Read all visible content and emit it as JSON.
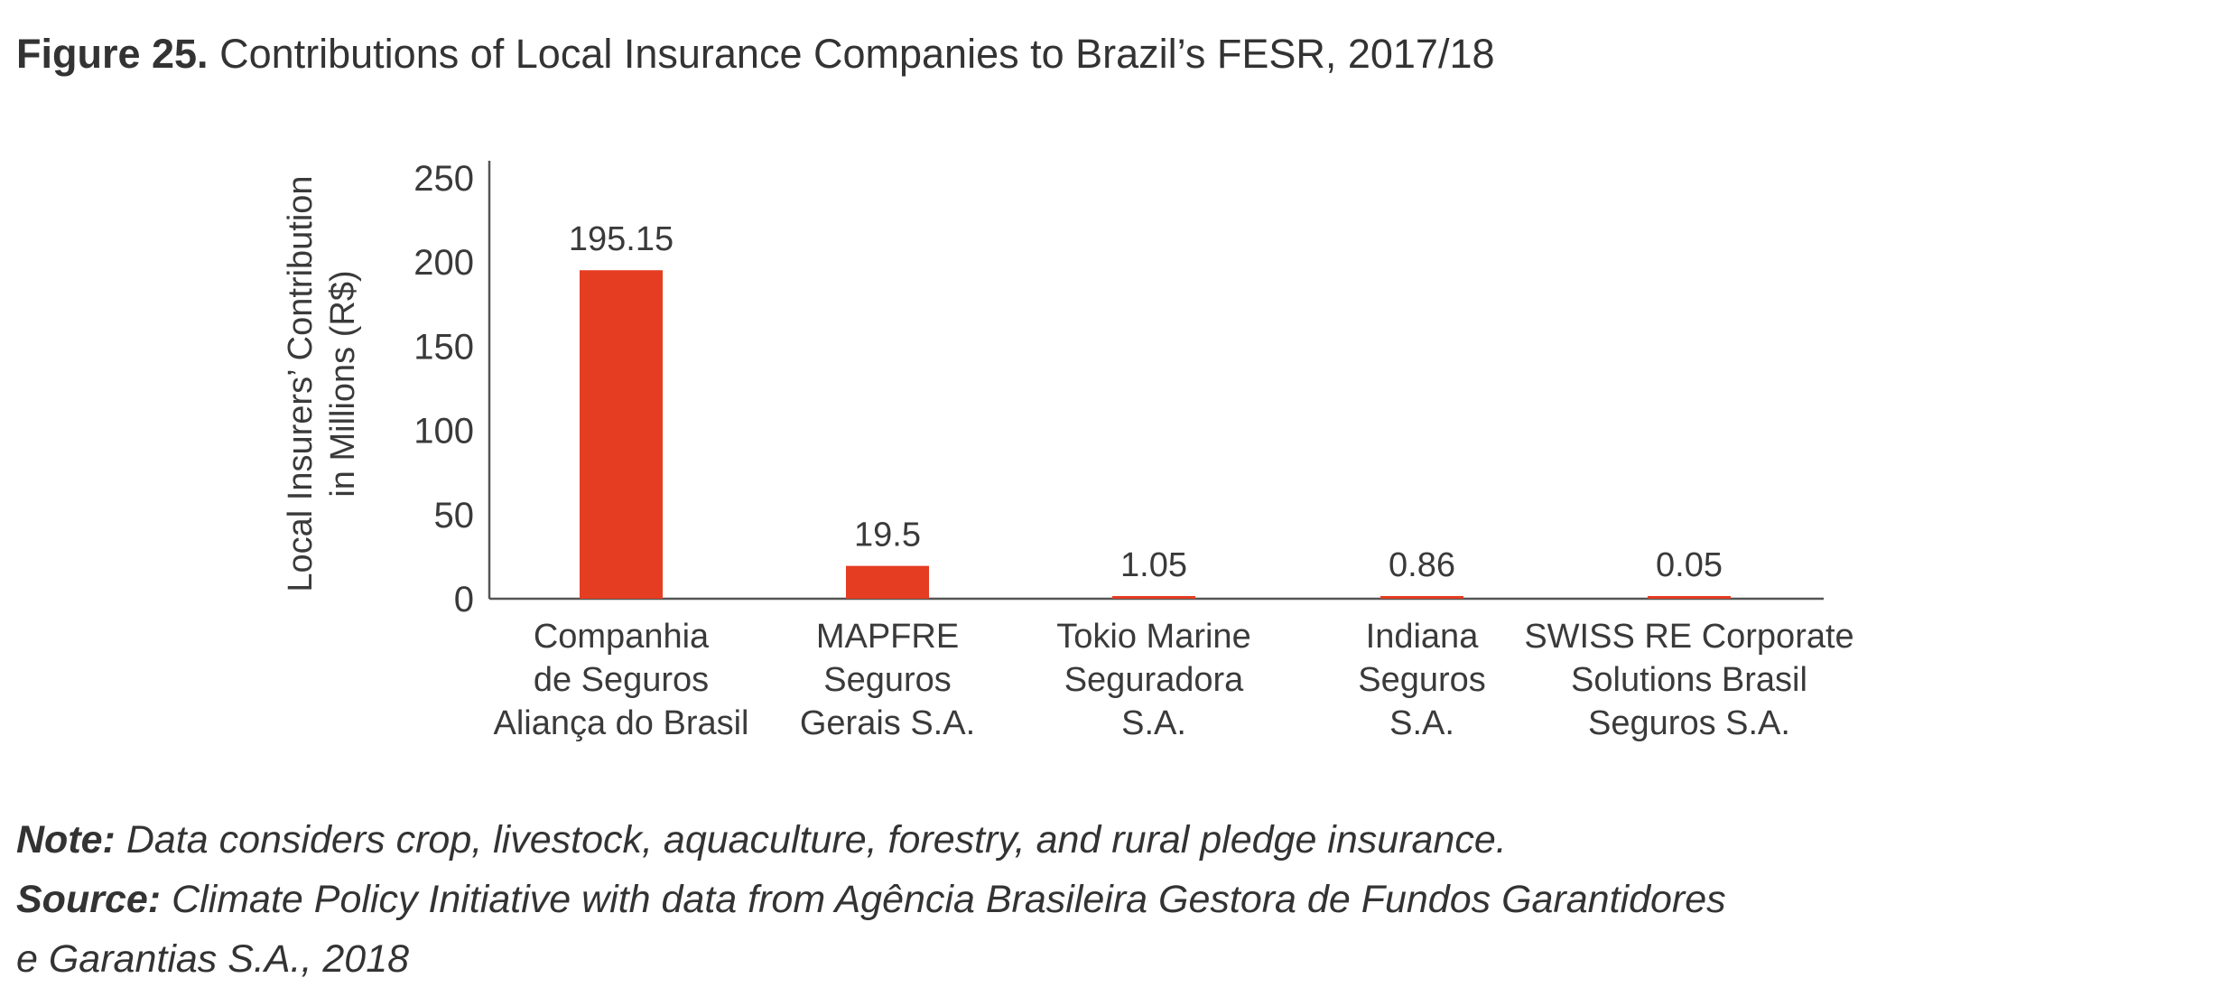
{
  "figure": {
    "number": "Figure 25.",
    "title": "Contributions of Local Insurance Companies to Brazil’s FESR, 2017/18"
  },
  "chart_data": {
    "type": "bar",
    "categories": [
      [
        "Companhia",
        "de Seguros",
        "Aliança do Brasil"
      ],
      [
        "MAPFRE",
        "Seguros",
        "Gerais S.A."
      ],
      [
        "Tokio Marine",
        "Seguradora",
        "S.A."
      ],
      [
        "Indiana",
        "Seguros",
        "S.A."
      ],
      [
        "SWISS RE Corporate",
        "Solutions Brasil",
        "Seguros S.A."
      ]
    ],
    "values": [
      195.15,
      19.5,
      1.05,
      0.86,
      0.05
    ],
    "data_labels": [
      "195.15",
      "19.5",
      "1.05",
      "0.86",
      "0.05"
    ],
    "ylabel": [
      "Local Insurers’ Contribution",
      "in Millions (R$)"
    ],
    "xlabel": "",
    "ylim": [
      0,
      250
    ],
    "yticks": [
      0,
      50,
      100,
      150,
      200,
      250
    ],
    "grid": false,
    "legend": "none",
    "bar_color": "#e53d22"
  },
  "notes": {
    "note_label": "Note:",
    "note_text": "Data considers crop, livestock, aquaculture, forestry, and rural pledge insurance.",
    "source_label": "Source:",
    "source_text_line1": "Climate Policy Initiative with data from Agência Brasileira Gestora de Fundos Garantidores",
    "source_text_line2": "e Garantias S.A., 2018"
  }
}
